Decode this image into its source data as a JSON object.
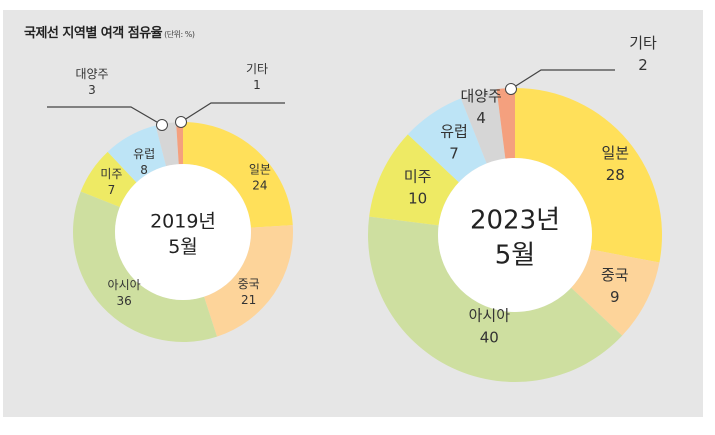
{
  "title": "국제선 지역별 여객 점유율",
  "unit": "(단위: %)",
  "chart_data": [
    {
      "type": "pie",
      "subtype": "donut",
      "center_label": [
        "2019년",
        "5월"
      ],
      "unit": "%",
      "start": "12 o'clock, clockwise",
      "slices": [
        {
          "label": "일본",
          "value": 24,
          "color": "#FFE05A"
        },
        {
          "label": "중국",
          "value": 21,
          "color": "#FDD49A"
        },
        {
          "label": "아시아",
          "value": 36,
          "color": "#CEDFA0"
        },
        {
          "label": "미주",
          "value": 7,
          "color": "#EEEA64"
        },
        {
          "label": "유럽",
          "value": 8,
          "color": "#BDE4F6"
        },
        {
          "label": "대양주",
          "value": 3,
          "color": "#D6D6D6",
          "callout": true
        },
        {
          "label": "기타",
          "value": 1,
          "color": "#F4A07E",
          "callout": true
        }
      ]
    },
    {
      "type": "pie",
      "subtype": "donut",
      "center_label": [
        "2023년",
        "5월"
      ],
      "unit": "%",
      "start": "12 o'clock, clockwise",
      "slices": [
        {
          "label": "일본",
          "value": 28,
          "color": "#FFE05A"
        },
        {
          "label": "중국",
          "value": 9,
          "color": "#FDD49A"
        },
        {
          "label": "아시아",
          "value": 40,
          "color": "#CEDFA0"
        },
        {
          "label": "미주",
          "value": 10,
          "color": "#EEEA64"
        },
        {
          "label": "유럽",
          "value": 7,
          "color": "#BDE4F6"
        },
        {
          "label": "대양주",
          "value": 4,
          "color": "#D6D6D6"
        },
        {
          "label": "기타",
          "value": 2,
          "color": "#F4A07E",
          "callout": true
        }
      ]
    }
  ]
}
